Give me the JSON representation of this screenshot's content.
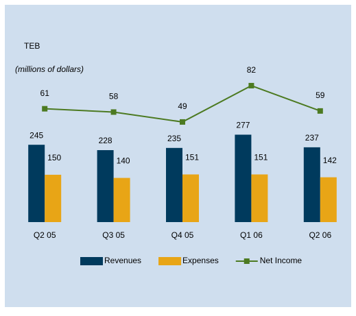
{
  "chart_data": {
    "type": "bar",
    "title": "TEB",
    "subtitle": "(millions of dollars)",
    "categories": [
      "Q2 05",
      "Q3 05",
      "Q4 05",
      "Q1 06",
      "Q2 06"
    ],
    "series": [
      {
        "name": "Revenues",
        "color": "#003a5d",
        "values": [
          245,
          228,
          235,
          277,
          237
        ]
      },
      {
        "name": "Expenses",
        "color": "#e8a516",
        "values": [
          150,
          140,
          151,
          151,
          142
        ]
      },
      {
        "name": "Net Income",
        "color": "#4c7a21",
        "type": "line",
        "axis": "y2",
        "values": [
          61,
          58,
          49,
          82,
          59
        ]
      }
    ],
    "ylim": [
      0,
      530
    ],
    "y2lim": [
      -42,
      110
    ],
    "grid": false,
    "legend": "bottom"
  }
}
